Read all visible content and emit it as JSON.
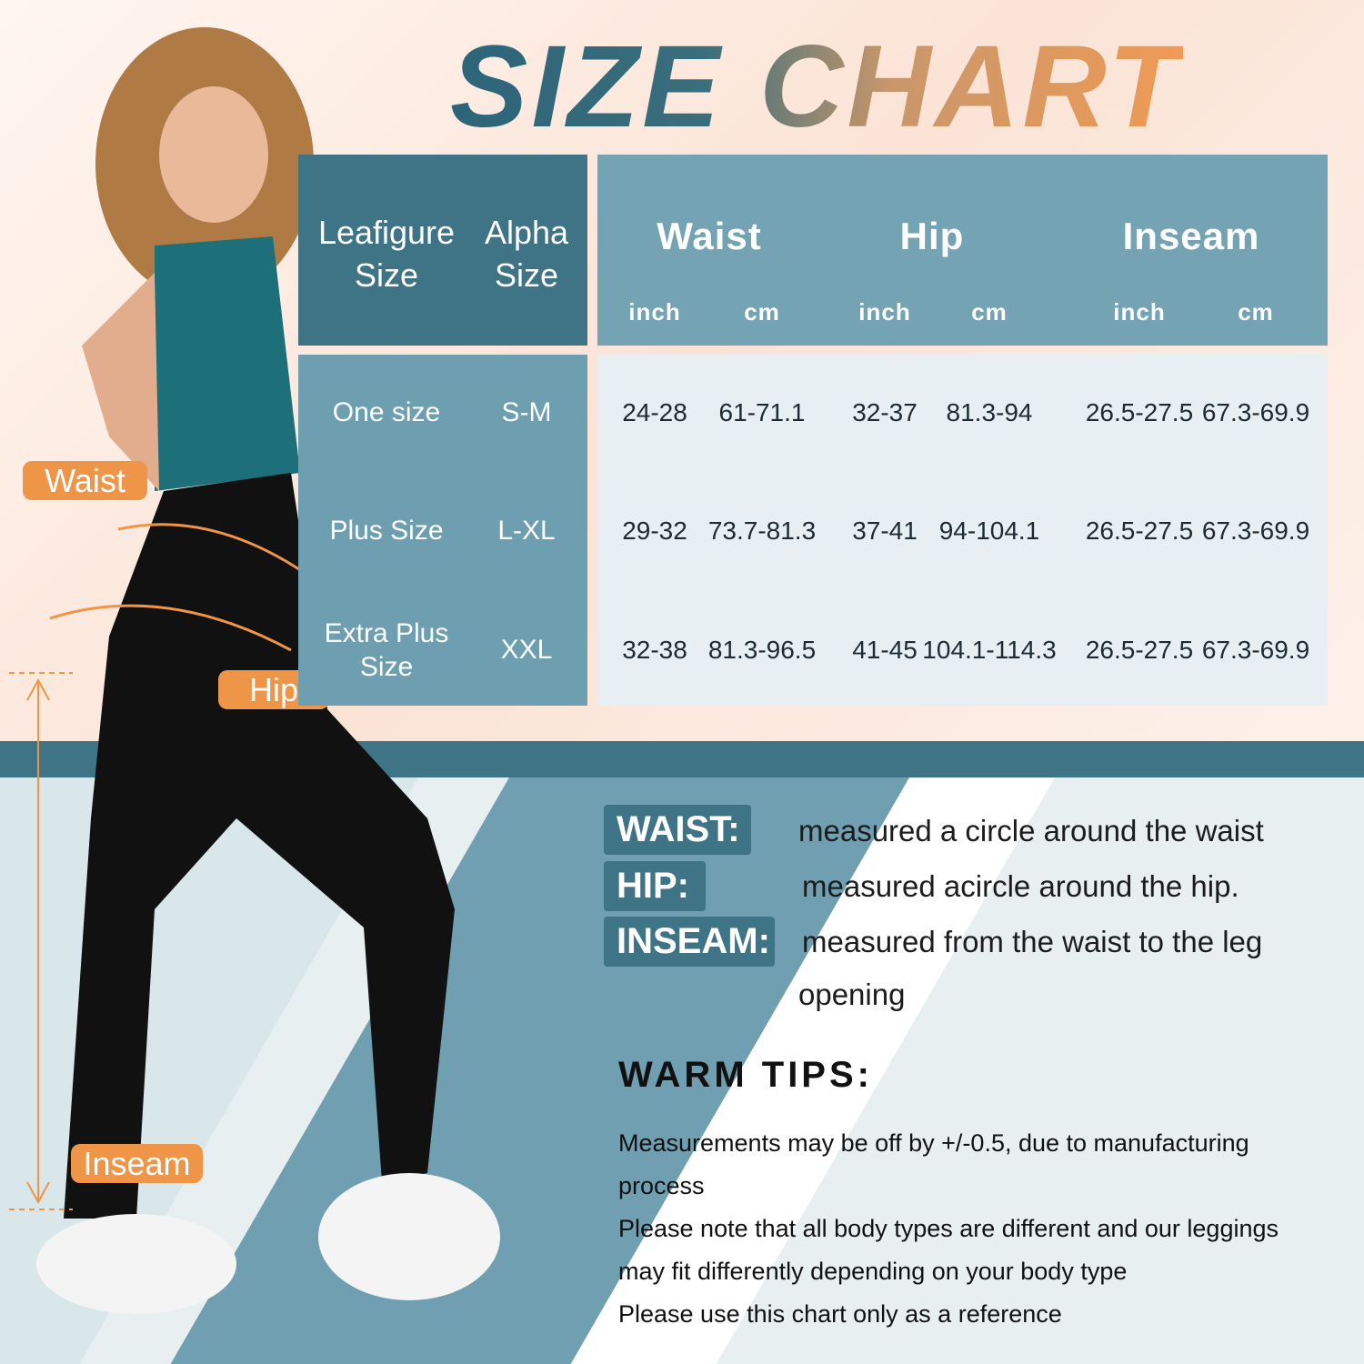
{
  "title": "SIZE CHART",
  "colors": {
    "teal_dark": "#3f7386",
    "teal_mid": "#6d9fb1",
    "light": "#e7eff1",
    "orange": "#ef9548"
  },
  "table": {
    "headers": {
      "leafigure_size": "Leafigure Size",
      "alpha_size": "Alpha Size",
      "waist": "Waist",
      "hip": "Hip",
      "inseam": "Inseam",
      "inch": "inch",
      "cm": "cm"
    },
    "rows": [
      {
        "leafigure": "One size",
        "alpha": "S-M",
        "values": [
          "24-28",
          "61-71.1",
          "32-37",
          "81.3-94",
          "26.5-27.5",
          "67.3-69.9"
        ]
      },
      {
        "leafigure": "Plus Size",
        "alpha": "L-XL",
        "values": [
          "29-32",
          "73.7-81.3",
          "37-41",
          "94-104.1",
          "26.5-27.5",
          "67.3-69.9"
        ]
      },
      {
        "leafigure": "Extra Plus Size",
        "alpha": "XXL",
        "values": [
          "32-38",
          "81.3-96.5",
          "41-45",
          "104.1-114.3",
          "26.5-27.5",
          "67.3-69.9"
        ]
      }
    ]
  },
  "figure_labels": {
    "waist": "Waist",
    "hip": "Hip",
    "inseam": "Inseam"
  },
  "definitions": [
    {
      "term": "WAIST:",
      "text": "measured a circle around the waist"
    },
    {
      "term": "HIP:",
      "text": "measured acircle around the hip."
    },
    {
      "term": "INSEAM:",
      "text": "measured from the waist to the leg",
      "text2": "opening"
    }
  ],
  "warm_tips": {
    "heading": "WARM TIPS:",
    "lines": [
      "Measurements may be off by +/-0.5, due to manufacturing",
      "process",
      "Please note that all body types are different and our leggings",
      "may fit differently depending on your body type",
      "Please use this chart only as a reference"
    ]
  }
}
